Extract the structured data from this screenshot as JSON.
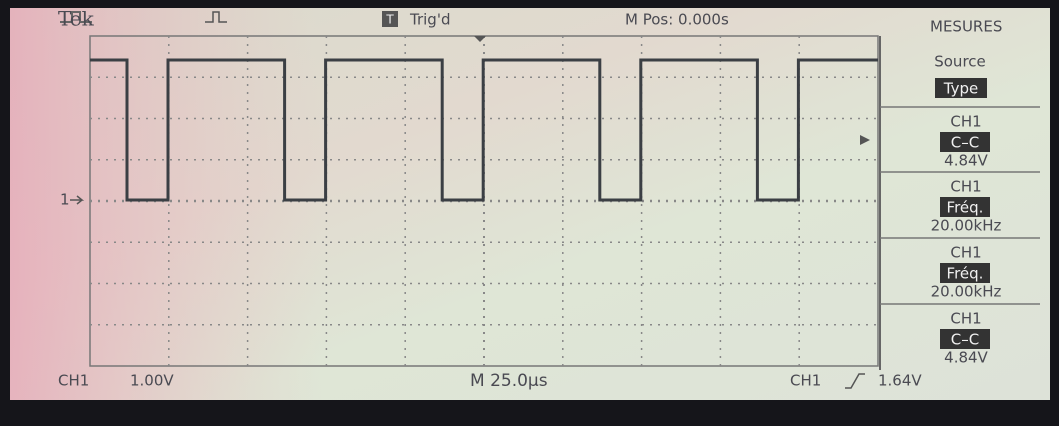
{
  "header": {
    "brand": "Tek",
    "trigger_icon": "T",
    "trigger_status": "Trig'd",
    "position": "M Pos: 0.000s",
    "menu_title": "MESURES"
  },
  "menu": {
    "source_label": "Source",
    "source_value": "Type",
    "items": [
      {
        "channel": "CH1",
        "measure": "C–C",
        "value": "4.84V"
      },
      {
        "channel": "CH1",
        "measure": "Fréq.",
        "value": "20.00kHz"
      },
      {
        "channel": "CH1",
        "measure": "Fréq.",
        "value": "20.00kHz"
      },
      {
        "channel": "CH1",
        "measure": "C–C",
        "value": "4.84V"
      }
    ]
  },
  "screen": {
    "ground_marker": "1"
  },
  "footer": {
    "channel": "CH1",
    "scale": "1.00V",
    "timebase": "M 25.0µs",
    "trigger_channel": "CH1",
    "trigger_level": "1.64V"
  }
}
